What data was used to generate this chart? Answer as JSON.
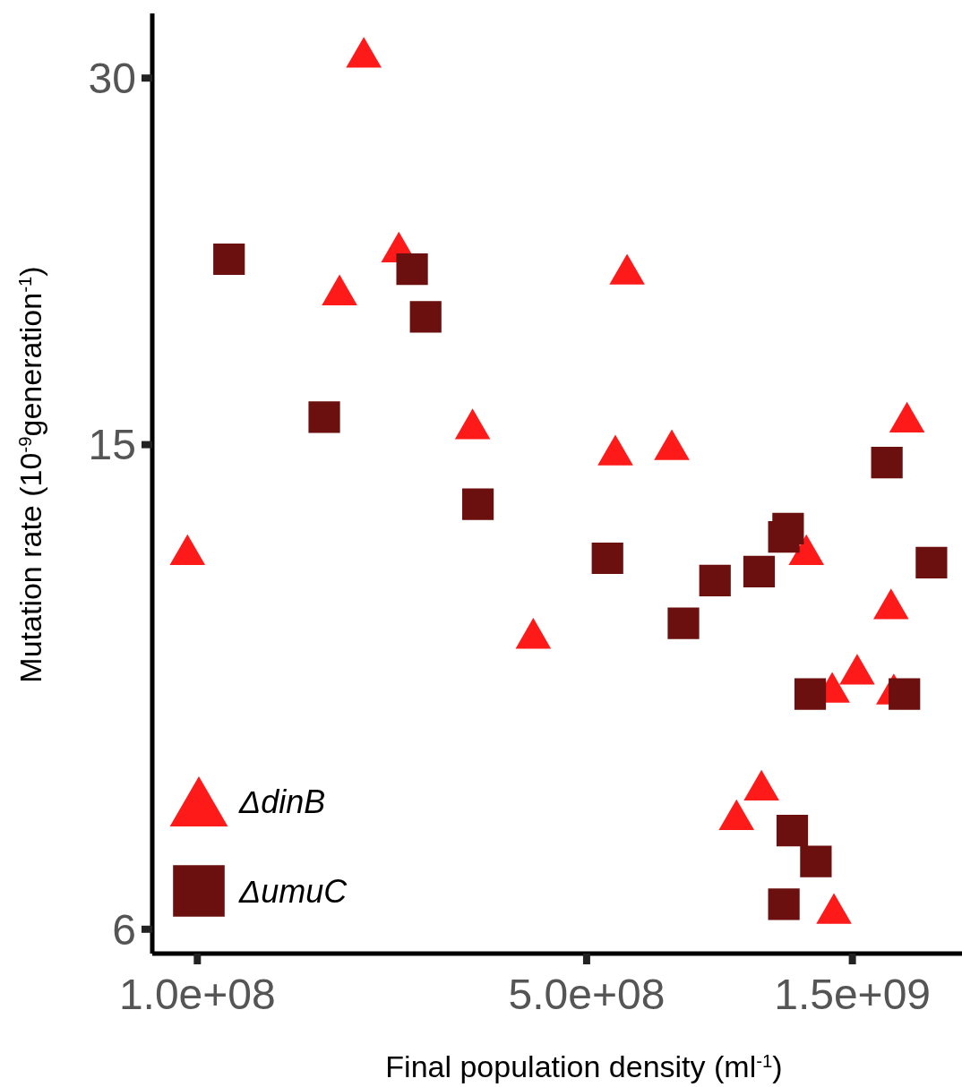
{
  "chart_data": {
    "type": "scatter",
    "xlabel": "Final population density (ml$^{-1}$)",
    "ylabel": "Mutation rate (10$^{-9}$generation$^{-1}$)",
    "log": "xy",
    "xlim": [
      83000000,
      2360000000
    ],
    "ylim": [
      5.73,
      33.9
    ],
    "xticks": [
      {
        "value": 100000000,
        "label": "1.0e+08"
      },
      {
        "value": 500000000,
        "label": "5.0e+08"
      },
      {
        "value": 1500000000,
        "label": "1.5e+09"
      }
    ],
    "yticks": [
      6,
      15,
      30
    ],
    "grid": false,
    "legend": "bottom left",
    "series": [
      {
        "name": "ΔdinB",
        "color": "#ff1a1a",
        "marker": "triangle",
        "x": [
          199000000,
          230000000,
          180000000,
          96000000,
          312000000,
          591000000,
          563000000,
          711000000,
          401000000,
          1240000000,
          1380000000,
          1530000000,
          1760000000,
          1780000000,
          1880000000,
          1030000000,
          929000000,
          1390000000
        ],
        "values": [
          31.5,
          21.8,
          20.1,
          12.3,
          15.6,
          20.9,
          14.85,
          15.0,
          10.5,
          12.3,
          9.48,
          9.81,
          11.1,
          9.45,
          15.8,
          7.88,
          7.45,
          6.24
        ]
      },
      {
        "name": "ΔumuC",
        "color": "#6b0f0f",
        "marker": "square",
        "x": [
          114000000,
          243000000,
          257000000,
          169000000,
          319000000,
          545000000,
          746000000,
          850000000,
          1020000000,
          1150000000,
          1130000000,
          1260000000,
          1730000000,
          1860000000,
          2080000000,
          1170000000,
          1290000000,
          1130000000
        ],
        "values": [
          21.3,
          20.9,
          19.1,
          15.8,
          13.4,
          12.1,
          10.7,
          11.6,
          11.8,
          12.8,
          12.6,
          9.36,
          14.5,
          9.36,
          12.0,
          7.23,
          6.82,
          6.29
        ]
      }
    ]
  }
}
